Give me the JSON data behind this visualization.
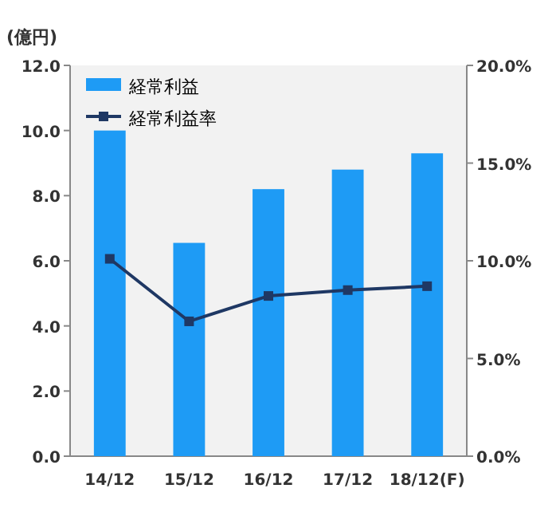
{
  "chart_data": {
    "type": "bar",
    "ylabel": "(億円)",
    "categories": [
      "14/12",
      "15/12",
      "16/12",
      "17/12",
      "18/12(F)"
    ],
    "series": [
      {
        "name": "経常利益",
        "color": "#1e9bf5",
        "values": [
          10.0,
          6.55,
          8.2,
          8.8,
          9.3
        ]
      },
      {
        "name": "経常利益率",
        "type": "line",
        "axis": "y2",
        "color": "#1f3864",
        "marker": "square",
        "values": [
          10.1,
          6.9,
          8.2,
          8.5,
          8.7
        ]
      }
    ],
    "ylim": [
      0,
      12
    ],
    "yticks": [
      {
        "value": 0,
        "label": "0.0"
      },
      {
        "value": 2,
        "label": "2.0"
      },
      {
        "value": 4,
        "label": "4.0"
      },
      {
        "value": 6,
        "label": "6.0"
      },
      {
        "value": 8,
        "label": "8.0"
      },
      {
        "value": 10,
        "label": "10.0"
      },
      {
        "value": 12,
        "label": "12.0"
      }
    ],
    "y2lim": [
      0,
      20
    ],
    "y2ticks": [
      {
        "value": 0,
        "label": "0.0%"
      },
      {
        "value": 5,
        "label": "5.0%"
      },
      {
        "value": 10,
        "label": "10.0%"
      },
      {
        "value": 15,
        "label": "15.0%"
      },
      {
        "value": 20,
        "label": "20.0%"
      }
    ],
    "legend": "top left",
    "grid": false
  }
}
